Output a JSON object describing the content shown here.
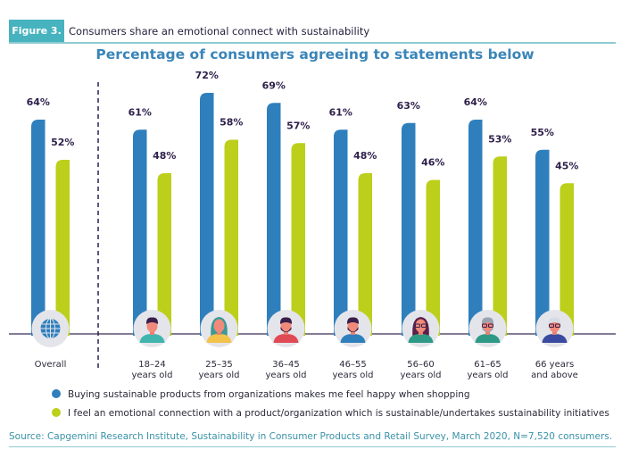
{
  "figure": {
    "badge": "Figure 3.",
    "caption": "Consumers share an emotional connect with sustainability"
  },
  "colors": {
    "series1": "#2f7fbd",
    "series2": "#bccf1b",
    "accent": "#47b3bf",
    "label": "#2d1f4a"
  },
  "chart_data": {
    "type": "bar",
    "title": "Percentage of consumers agreeing to statements below",
    "xlabel": "",
    "ylabel": "",
    "ylim": [
      0,
      100
    ],
    "grid": false,
    "legend_position": "bottom-left",
    "categories": [
      "Overall",
      "18–24\nyears old",
      "25–35\nyears old",
      "36–45\nyears old",
      "46–55\nyears old",
      "56–60\nyears old",
      "61–65\nyears old",
      "66 years\nand above"
    ],
    "category_icons": [
      "globe-icon",
      "young-man-avatar-icon",
      "young-woman-avatar-icon",
      "man-avatar-icon",
      "bearded-man-avatar-icon",
      "woman-glasses-avatar-icon",
      "older-man-avatar-icon",
      "senior-man-avatar-icon"
    ],
    "series": [
      {
        "name": "Buying sustainable products from organizations makes me feel happy when shopping",
        "values": [
          64,
          61,
          72,
          69,
          61,
          63,
          64,
          55
        ]
      },
      {
        "name": "I feel an emotional connection with a product/organization which is sustainable/undertakes sustainability initiatives",
        "values": [
          52,
          48,
          58,
          57,
          48,
          46,
          53,
          45
        ]
      }
    ],
    "value_suffix": "%"
  },
  "source": "Source: Capgemini Research Institute, Sustainability in Consumer Products and Retail Survey, March 2020, N=7,520 consumers."
}
